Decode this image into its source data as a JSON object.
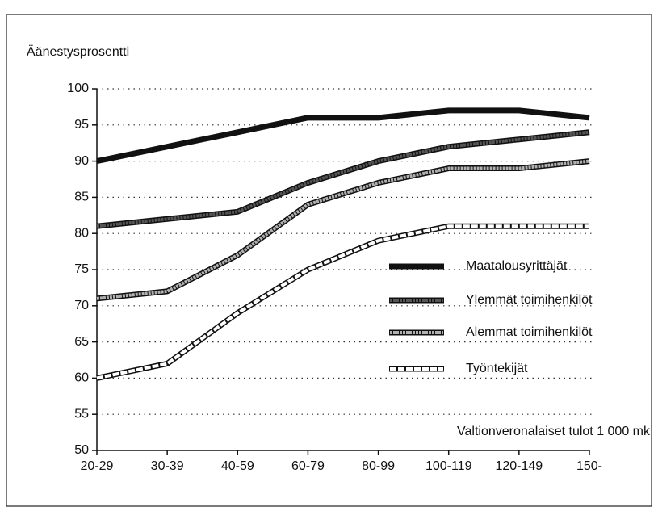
{
  "chart_data": {
    "type": "line",
    "y_label": "Äänestysprosentti",
    "x_label": "Valtionveronalaiset tulot 1 000 mk",
    "categories": [
      "20-29",
      "30-39",
      "40-59",
      "60-79",
      "80-99",
      "100-119",
      "120-149",
      "150-"
    ],
    "series": [
      {
        "name": "Maatalousyrittäjät",
        "color": "#111111",
        "values": [
          90,
          92,
          94,
          96,
          96,
          97,
          97,
          96
        ]
      },
      {
        "name": "Ylemmät toimihenkilöt",
        "color": "#555555",
        "values": [
          81,
          82,
          83,
          87,
          90,
          92,
          93,
          94
        ]
      },
      {
        "name": "Alemmat toimihenkilöt",
        "color": "#b0b0b0",
        "values": [
          71,
          72,
          77,
          84,
          87,
          89,
          89,
          90
        ]
      },
      {
        "name": "Työntekijät",
        "color": "#ffffff",
        "values": [
          60,
          62,
          69,
          75,
          79,
          81,
          81,
          81
        ]
      }
    ],
    "ylim": [
      50,
      100
    ],
    "yticks": [
      50,
      55,
      60,
      65,
      70,
      75,
      80,
      85,
      90,
      95,
      100
    ],
    "grid": true
  }
}
